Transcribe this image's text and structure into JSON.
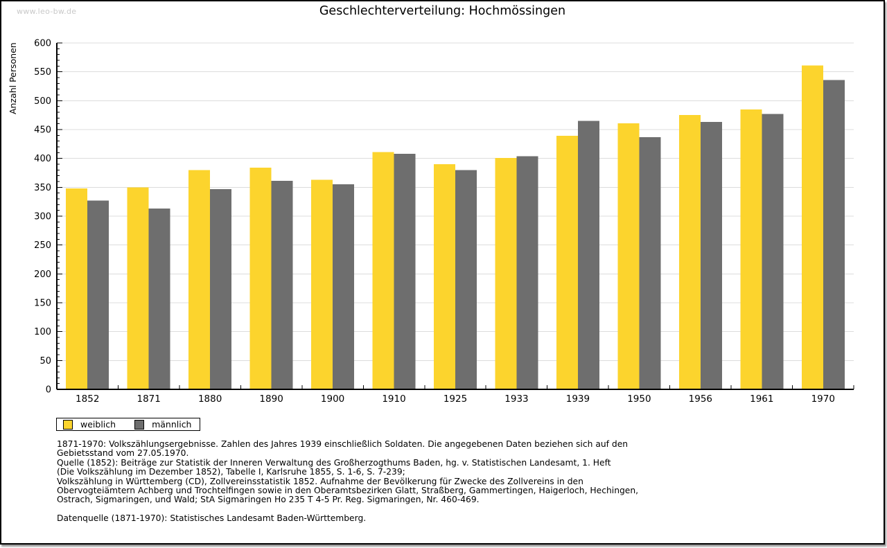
{
  "page": {
    "watermark": "www.leo-bw.de"
  },
  "chart_data": {
    "type": "bar",
    "title": "Geschlechterverteilung: Hochmössingen",
    "xlabel": "",
    "ylabel": "Anzahl Personen",
    "ylim": [
      0,
      600
    ],
    "y_major_tick": 50,
    "y_minor_tick": 10,
    "grid": "horizontal",
    "legend_position": "bottom-left",
    "categories": [
      "1852",
      "1871",
      "1880",
      "1890",
      "1900",
      "1910",
      "1925",
      "1933",
      "1939",
      "1950",
      "1956",
      "1961",
      "1970"
    ],
    "series": [
      {
        "name": "weiblich",
        "color": "#FCD42D",
        "values": [
          348,
          350,
          380,
          384,
          363,
          411,
          390,
          401,
          439,
          461,
          475,
          485,
          561
        ]
      },
      {
        "name": "männlich",
        "color": "#6E6E6E",
        "values": [
          327,
          313,
          347,
          361,
          355,
          408,
          380,
          404,
          465,
          437,
          463,
          477,
          536
        ]
      }
    ],
    "colors": {
      "gridline": "#dcdcdc",
      "axis": "#000000"
    }
  },
  "notes": {
    "lines": [
      "1871-1970: Volkszählungsergebnisse. Zahlen des Jahres 1939 einschließlich Soldaten. Die angegebenen Daten beziehen sich auf den",
      "Gebietsstand vom 27.05.1970.",
      "Quelle (1852): Beiträge zur Statistik der Inneren Verwaltung des Großherzogthums Baden, hg. v. Statistischen Landesamt, 1. Heft",
      "(Die Volkszählung im Dezember 1852), Tabelle I, Karlsruhe 1855, S. 1-6, S. 7-239;",
      "Volkszählung in Württemberg (CD), Zollvereinsstatistik 1852. Aufnahme der Bevölkerung für Zwecke des Zollvereins in den",
      "Obervogteiämtern Achberg und Trochtelfingen sowie in den Oberamtsbezirken Glatt, Straßberg, Gammertingen, Haigerloch, Hechingen,",
      "Ostrach, Sigmaringen, und Wald; StA Sigmaringen Ho 235 T 4-5 Pr. Reg. Sigmaringen, Nr. 460-469.",
      "Datenquelle (1871-1970): Statistisches Landesamt Baden-Württemberg."
    ]
  }
}
